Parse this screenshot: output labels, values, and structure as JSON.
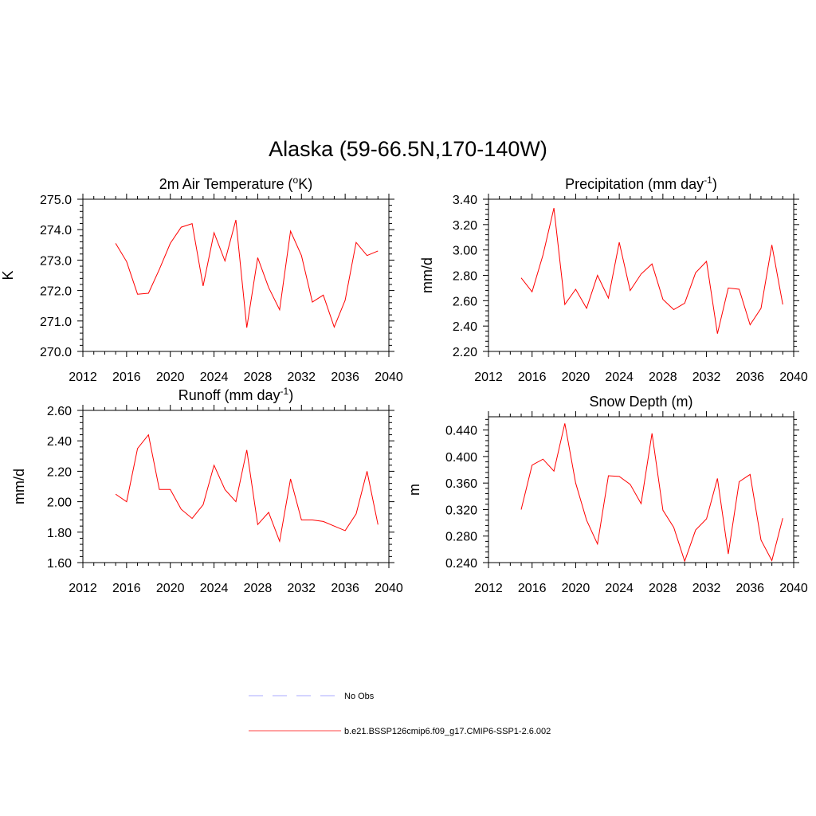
{
  "title": "Alaska (59-66.5N,170-140W)",
  "colors": {
    "series_line": "#ff0000",
    "obs_line": "#aaaaff",
    "axes": "#000000"
  },
  "legend": {
    "entries": [
      {
        "label": "No Obs",
        "style": "dashed",
        "color": "#aaaaff"
      },
      {
        "label": "b.e21.BSSP126cmip6.f09_g17.CMIP6-SSP1-2.6.002",
        "style": "solid",
        "color": "#ff4444"
      }
    ]
  },
  "chart_data": [
    {
      "type": "line",
      "title": "2m Air Temperature (°K)",
      "title_parts": [
        "2m Air Temperature (",
        "o",
        "K)"
      ],
      "ylabel": "K",
      "xlim": [
        2012,
        2040
      ],
      "ylim": [
        270,
        275
      ],
      "xticks": [
        2012,
        2016,
        2020,
        2024,
        2028,
        2032,
        2036,
        2040
      ],
      "yticks": [
        "270.0",
        "271.0",
        "272.0",
        "273.0",
        "274.0",
        "275.0"
      ],
      "x": [
        2015,
        2016,
        2017,
        2018,
        2019,
        2020,
        2021,
        2022,
        2023,
        2024,
        2025,
        2026,
        2027,
        2028,
        2029,
        2030,
        2031,
        2032,
        2033,
        2034,
        2035,
        2036,
        2037,
        2038,
        2039
      ],
      "y": [
        273.55,
        272.95,
        271.88,
        271.91,
        272.7,
        273.55,
        274.08,
        274.2,
        272.15,
        273.9,
        272.97,
        274.32,
        270.78,
        273.08,
        272.1,
        271.37,
        273.95,
        273.15,
        271.62,
        271.85,
        270.8,
        271.68,
        273.58,
        273.15,
        273.3
      ]
    },
    {
      "type": "line",
      "title": "Precipitation (mm day-1)",
      "title_parts": [
        "Precipitation (mm day",
        "-1",
        ")"
      ],
      "ylabel": "mm/d",
      "xlim": [
        2012,
        2040
      ],
      "ylim": [
        2.2,
        3.4
      ],
      "xticks": [
        2012,
        2016,
        2020,
        2024,
        2028,
        2032,
        2036,
        2040
      ],
      "yticks": [
        "2.20",
        "2.40",
        "2.60",
        "2.80",
        "3.00",
        "3.20",
        "3.40"
      ],
      "x": [
        2015,
        2016,
        2017,
        2018,
        2019,
        2020,
        2021,
        2022,
        2023,
        2024,
        2025,
        2026,
        2027,
        2028,
        2029,
        2030,
        2031,
        2032,
        2033,
        2034,
        2035,
        2036,
        2037,
        2038,
        2039
      ],
      "y": [
        2.78,
        2.67,
        2.96,
        3.33,
        2.57,
        2.69,
        2.54,
        2.8,
        2.62,
        3.06,
        2.68,
        2.81,
        2.89,
        2.61,
        2.53,
        2.58,
        2.82,
        2.91,
        2.34,
        2.7,
        2.69,
        2.41,
        2.54,
        3.04,
        2.57
      ]
    },
    {
      "type": "line",
      "title": "Runoff (mm day-1)",
      "title_parts": [
        "Runoff (mm day",
        "-1",
        ")"
      ],
      "ylabel": "mm/d",
      "xlim": [
        2012,
        2040
      ],
      "ylim": [
        1.6,
        2.6
      ],
      "xticks": [
        2012,
        2016,
        2020,
        2024,
        2028,
        2032,
        2036,
        2040
      ],
      "yticks": [
        "1.60",
        "1.80",
        "2.00",
        "2.20",
        "2.40",
        "2.60"
      ],
      "x": [
        2015,
        2016,
        2017,
        2018,
        2019,
        2020,
        2021,
        2022,
        2023,
        2024,
        2025,
        2026,
        2027,
        2028,
        2029,
        2030,
        2031,
        2032,
        2033,
        2034,
        2035,
        2036,
        2037,
        2038,
        2039
      ],
      "y": [
        2.05,
        2.0,
        2.35,
        2.44,
        2.08,
        2.08,
        1.95,
        1.89,
        1.98,
        2.24,
        2.08,
        2.0,
        2.34,
        1.85,
        1.93,
        1.74,
        2.15,
        1.88,
        1.88,
        1.87,
        1.84,
        1.81,
        1.92,
        2.2,
        1.85
      ]
    },
    {
      "type": "line",
      "title": "Snow Depth (m)",
      "title_parts": [
        "Snow Depth (m)"
      ],
      "ylabel": "m",
      "xlim": [
        2012,
        2040
      ],
      "ylim": [
        0.24,
        0.46
      ],
      "xticks": [
        2012,
        2016,
        2020,
        2024,
        2028,
        2032,
        2036,
        2040
      ],
      "yticks": [
        "0.240",
        "0.280",
        "0.320",
        "0.360",
        "0.400",
        "0.440"
      ],
      "x": [
        2015,
        2016,
        2017,
        2018,
        2019,
        2020,
        2021,
        2022,
        2023,
        2024,
        2025,
        2026,
        2027,
        2028,
        2029,
        2030,
        2031,
        2032,
        2033,
        2034,
        2035,
        2036,
        2037,
        2038,
        2039
      ],
      "y": [
        0.32,
        0.387,
        0.396,
        0.378,
        0.45,
        0.36,
        0.304,
        0.268,
        0.371,
        0.37,
        0.358,
        0.329,
        0.435,
        0.319,
        0.293,
        0.242,
        0.289,
        0.306,
        0.367,
        0.253,
        0.362,
        0.373,
        0.274,
        0.243,
        0.307
      ]
    }
  ]
}
